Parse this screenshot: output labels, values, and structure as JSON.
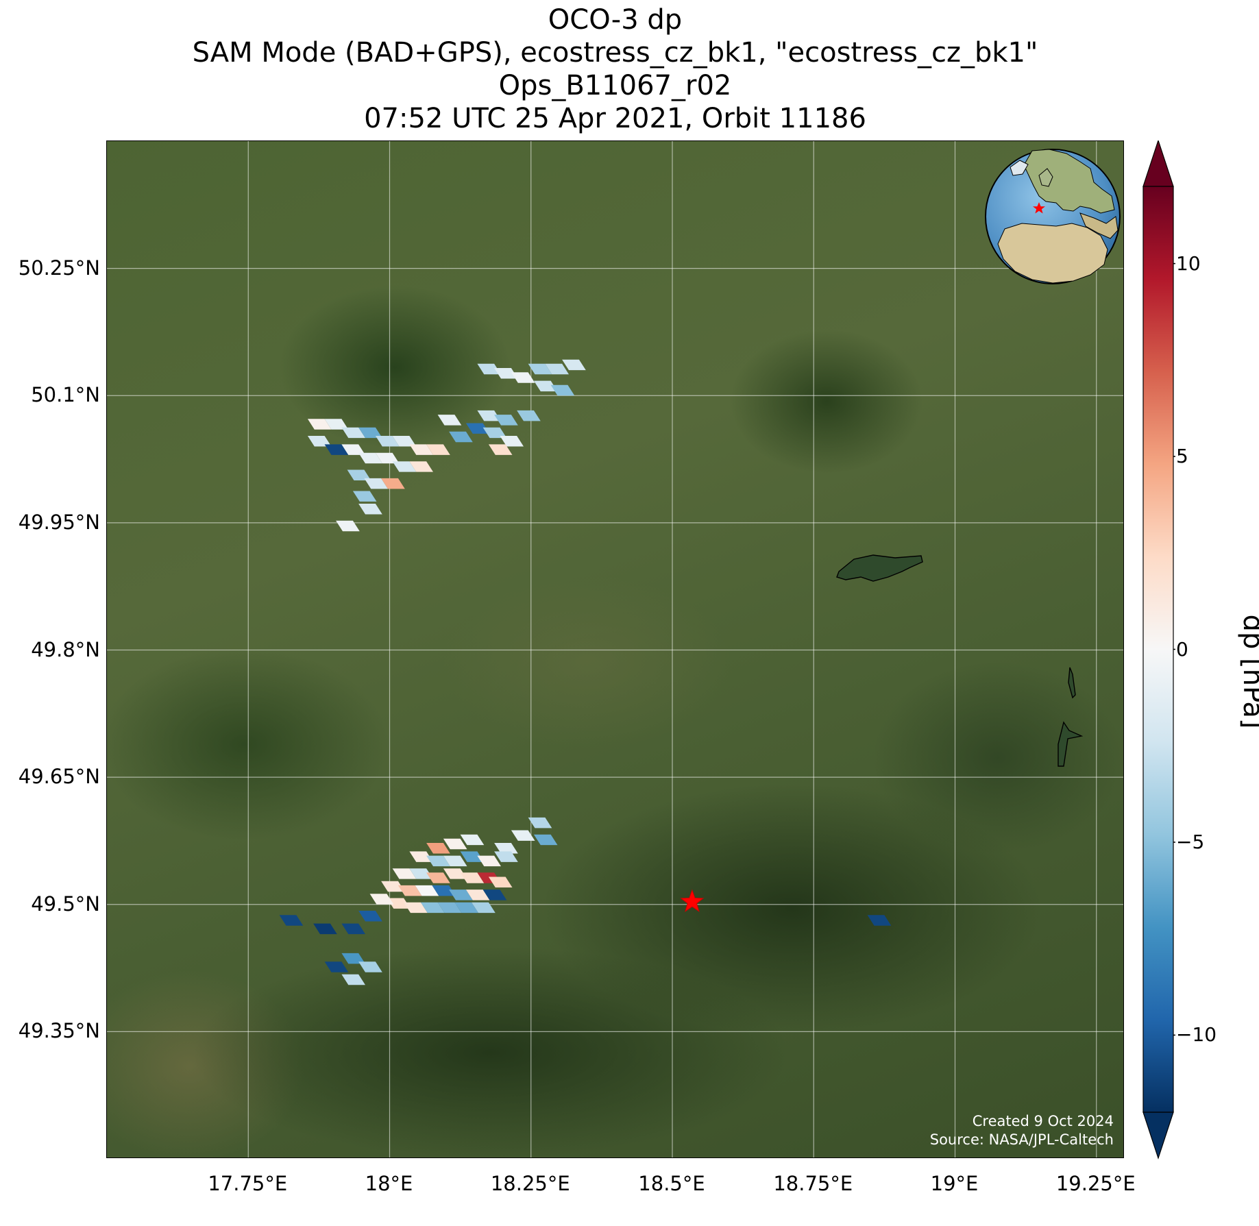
{
  "title": {
    "line1": "OCO-3 dp",
    "line2": "SAM Mode (BAD+GPS), ecostress_cz_bk1, \"ecostress_cz_bk1\"",
    "line3": "Ops_B11067_r02",
    "line4": "07:52 UTC 25 Apr 2021, Orbit 11186"
  },
  "credits": {
    "created": "Created 9 Oct 2024",
    "source": "Source: NASA/JPL-Caltech"
  },
  "map": {
    "lon_range": [
      17.5,
      19.3
    ],
    "lat_range": [
      49.2,
      50.4
    ],
    "background": "satellite imagery",
    "gridlines": true,
    "target": {
      "lon": 18.535,
      "lat": 49.503,
      "marker": "red-star",
      "color": "#ff0000"
    },
    "inset_globe": {
      "placement": "top-right",
      "marker": "red-star"
    }
  },
  "axes": {
    "x_ticks": [
      {
        "value": 17.75,
        "label": "17.75°E"
      },
      {
        "value": 18.0,
        "label": "18°E"
      },
      {
        "value": 18.25,
        "label": "18.25°E"
      },
      {
        "value": 18.5,
        "label": "18.5°E"
      },
      {
        "value": 18.75,
        "label": "18.75°E"
      },
      {
        "value": 19.0,
        "label": "19°E"
      },
      {
        "value": 19.25,
        "label": "19.25°E"
      }
    ],
    "y_ticks": [
      {
        "value": 50.25,
        "label": "50.25°N"
      },
      {
        "value": 50.1,
        "label": "50.1°N"
      },
      {
        "value": 49.95,
        "label": "49.95°N"
      },
      {
        "value": 49.8,
        "label": "49.8°N"
      },
      {
        "value": 49.65,
        "label": "49.65°N"
      },
      {
        "value": 49.5,
        "label": "49.5°N"
      },
      {
        "value": 49.35,
        "label": "49.35°N"
      }
    ]
  },
  "colorbar": {
    "label": "dp [hPa]",
    "range": [
      -12,
      12
    ],
    "colormap": "RdBu_r",
    "extend": "both",
    "ticks": [
      {
        "value": 10,
        "label": "10"
      },
      {
        "value": 5,
        "label": "5"
      },
      {
        "value": 0,
        "label": "0"
      },
      {
        "value": -5,
        "label": "−5"
      },
      {
        "value": -10,
        "label": "−10"
      }
    ]
  },
  "chart_data": {
    "type": "heatmap",
    "variable": "dp",
    "units": "hPa",
    "soundings": [
      {
        "lon": 17.87,
        "lat": 50.06,
        "dp": 0.5
      },
      {
        "lon": 17.9,
        "lat": 50.06,
        "dp": -1.0
      },
      {
        "lon": 17.93,
        "lat": 50.05,
        "dp": -2.5
      },
      {
        "lon": 17.96,
        "lat": 50.05,
        "dp": -6.0
      },
      {
        "lon": 17.99,
        "lat": 50.04,
        "dp": -3.0
      },
      {
        "lon": 18.02,
        "lat": 50.04,
        "dp": -1.5
      },
      {
        "lon": 18.05,
        "lat": 50.03,
        "dp": 1.0
      },
      {
        "lon": 18.08,
        "lat": 50.03,
        "dp": 2.0
      },
      {
        "lon": 17.87,
        "lat": 50.04,
        "dp": -2.0
      },
      {
        "lon": 17.9,
        "lat": 50.03,
        "dp": -11.0
      },
      {
        "lon": 17.93,
        "lat": 50.03,
        "dp": -0.5
      },
      {
        "lon": 17.96,
        "lat": 50.02,
        "dp": -1.0
      },
      {
        "lon": 17.99,
        "lat": 50.02,
        "dp": -0.5
      },
      {
        "lon": 18.02,
        "lat": 50.01,
        "dp": -2.0
      },
      {
        "lon": 18.05,
        "lat": 50.01,
        "dp": 1.5
      },
      {
        "lon": 17.94,
        "lat": 50.0,
        "dp": -4.0
      },
      {
        "lon": 17.97,
        "lat": 49.99,
        "dp": -2.0
      },
      {
        "lon": 18.0,
        "lat": 49.99,
        "dp": 4.5
      },
      {
        "lon": 17.95,
        "lat": 49.975,
        "dp": -4.5
      },
      {
        "lon": 17.96,
        "lat": 49.96,
        "dp": -2.0
      },
      {
        "lon": 17.92,
        "lat": 49.94,
        "dp": -0.5
      },
      {
        "lon": 18.1,
        "lat": 50.065,
        "dp": -1.0
      },
      {
        "lon": 18.12,
        "lat": 50.045,
        "dp": -6.0
      },
      {
        "lon": 18.15,
        "lat": 50.055,
        "dp": -9.0
      },
      {
        "lon": 18.17,
        "lat": 50.07,
        "dp": -2.5
      },
      {
        "lon": 18.18,
        "lat": 50.05,
        "dp": -4.0
      },
      {
        "lon": 18.2,
        "lat": 50.065,
        "dp": -5.0
      },
      {
        "lon": 18.21,
        "lat": 50.04,
        "dp": -1.0
      },
      {
        "lon": 18.19,
        "lat": 50.03,
        "dp": 2.0
      },
      {
        "lon": 18.24,
        "lat": 50.07,
        "dp": -4.5
      },
      {
        "lon": 18.17,
        "lat": 50.125,
        "dp": -3.0
      },
      {
        "lon": 18.2,
        "lat": 50.12,
        "dp": -1.5
      },
      {
        "lon": 18.23,
        "lat": 50.115,
        "dp": -0.5
      },
      {
        "lon": 18.26,
        "lat": 50.125,
        "dp": -4.0
      },
      {
        "lon": 18.29,
        "lat": 50.125,
        "dp": -3.0
      },
      {
        "lon": 18.32,
        "lat": 50.13,
        "dp": -2.0
      },
      {
        "lon": 18.27,
        "lat": 50.105,
        "dp": -2.5
      },
      {
        "lon": 18.3,
        "lat": 50.1,
        "dp": -5.0
      },
      {
        "lon": 18.26,
        "lat": 49.59,
        "dp": -3.5
      },
      {
        "lon": 18.23,
        "lat": 49.575,
        "dp": -1.0
      },
      {
        "lon": 18.27,
        "lat": 49.57,
        "dp": -6.0
      },
      {
        "lon": 18.2,
        "lat": 49.56,
        "dp": -1.5
      },
      {
        "lon": 18.14,
        "lat": 49.57,
        "dp": -1.0
      },
      {
        "lon": 18.11,
        "lat": 49.565,
        "dp": 0.5
      },
      {
        "lon": 18.08,
        "lat": 49.56,
        "dp": 5.0
      },
      {
        "lon": 18.05,
        "lat": 49.55,
        "dp": 1.0
      },
      {
        "lon": 18.08,
        "lat": 49.545,
        "dp": -4.0
      },
      {
        "lon": 18.11,
        "lat": 49.545,
        "dp": -2.0
      },
      {
        "lon": 18.14,
        "lat": 49.55,
        "dp": -6.5
      },
      {
        "lon": 18.17,
        "lat": 49.545,
        "dp": 0.5
      },
      {
        "lon": 18.2,
        "lat": 49.55,
        "dp": -3.0
      },
      {
        "lon": 18.02,
        "lat": 49.53,
        "dp": 0.5
      },
      {
        "lon": 18.05,
        "lat": 49.53,
        "dp": -2.5
      },
      {
        "lon": 18.08,
        "lat": 49.525,
        "dp": 4.0
      },
      {
        "lon": 18.11,
        "lat": 49.53,
        "dp": 1.5
      },
      {
        "lon": 18.14,
        "lat": 49.525,
        "dp": 2.0
      },
      {
        "lon": 18.17,
        "lat": 49.525,
        "dp": 9.0
      },
      {
        "lon": 18.19,
        "lat": 49.52,
        "dp": 2.5
      },
      {
        "lon": 18.0,
        "lat": 49.515,
        "dp": 1.5
      },
      {
        "lon": 18.03,
        "lat": 49.51,
        "dp": 3.5
      },
      {
        "lon": 18.06,
        "lat": 49.51,
        "dp": 0.0
      },
      {
        "lon": 18.09,
        "lat": 49.51,
        "dp": -9.0
      },
      {
        "lon": 18.12,
        "lat": 49.505,
        "dp": -6.0
      },
      {
        "lon": 18.15,
        "lat": 49.505,
        "dp": 1.5
      },
      {
        "lon": 18.18,
        "lat": 49.505,
        "dp": -11.0
      },
      {
        "lon": 18.01,
        "lat": 49.495,
        "dp": 2.0
      },
      {
        "lon": 18.04,
        "lat": 49.49,
        "dp": 1.5
      },
      {
        "lon": 18.07,
        "lat": 49.49,
        "dp": -5.0
      },
      {
        "lon": 18.1,
        "lat": 49.49,
        "dp": -5.5
      },
      {
        "lon": 18.13,
        "lat": 49.49,
        "dp": -6.0
      },
      {
        "lon": 18.16,
        "lat": 49.49,
        "dp": -4.0
      },
      {
        "lon": 17.98,
        "lat": 49.5,
        "dp": 0.5
      },
      {
        "lon": 17.96,
        "lat": 49.48,
        "dp": -10.0
      },
      {
        "lon": 17.93,
        "lat": 49.465,
        "dp": -11.0
      },
      {
        "lon": 17.88,
        "lat": 49.465,
        "dp": -11.5
      },
      {
        "lon": 17.82,
        "lat": 49.475,
        "dp": -11.0
      },
      {
        "lon": 17.93,
        "lat": 49.43,
        "dp": -7.0
      },
      {
        "lon": 17.96,
        "lat": 49.42,
        "dp": -4.0
      },
      {
        "lon": 17.9,
        "lat": 49.42,
        "dp": -11.0
      },
      {
        "lon": 17.93,
        "lat": 49.405,
        "dp": -3.0
      },
      {
        "lon": 18.86,
        "lat": 49.475,
        "dp": -11.0
      }
    ]
  }
}
